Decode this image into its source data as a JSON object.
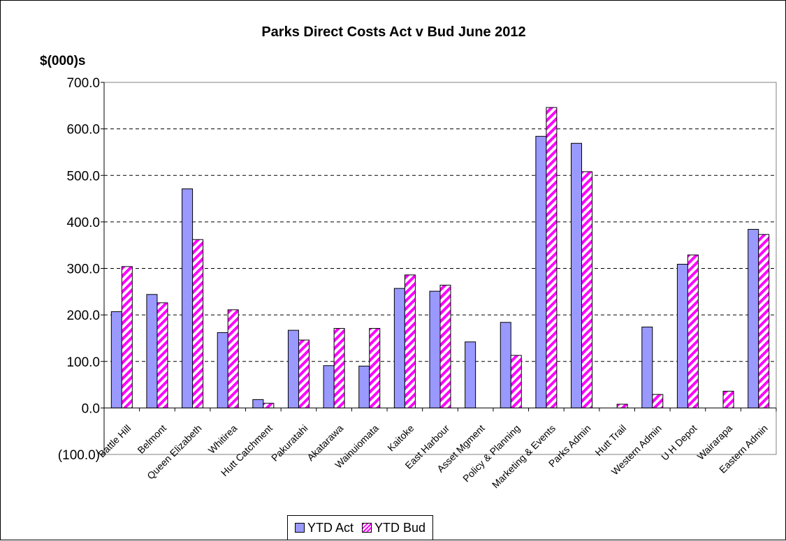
{
  "chart_data": {
    "type": "bar",
    "title": "Parks Direct Costs Act v Bud June 2012",
    "xlabel": "",
    "ylabel": "$(000)s",
    "ylim": [
      -100,
      700
    ],
    "yticks": [
      -100,
      0,
      100,
      200,
      300,
      400,
      500,
      600,
      700
    ],
    "ytick_labels": [
      "(100.0)",
      "0.0",
      "100.0",
      "200.0",
      "300.0",
      "400.0",
      "500.0",
      "600.0",
      "700.0"
    ],
    "grid": true,
    "legend_position": "bottom",
    "categories": [
      "Battle Hill",
      "Belmont",
      "Queen Elizabeth",
      "Whitirea",
      "Hutt Catchment",
      "Pakuratahi",
      "Akatarawa",
      "Wainuiomata",
      "Kaitoke",
      "East Harbour",
      "Asset Mgment",
      "Policy & Planning",
      "Marketing & Events",
      "Parks Admin",
      "Hutt Trail",
      "Western Admin",
      "U H Depot",
      "Wairarapa",
      "Eastern Admin"
    ],
    "series": [
      {
        "name": "YTD Act",
        "color": "#9999ff",
        "values": [
          207,
          244,
          471,
          162,
          18,
          167,
          91,
          90,
          257,
          251,
          142,
          184,
          584,
          569,
          0,
          174,
          309,
          0,
          384
        ]
      },
      {
        "name": "YTD Bud",
        "color": "#ff00ff",
        "values": [
          304,
          226,
          362,
          211,
          10,
          146,
          171,
          171,
          286,
          264,
          0,
          113,
          646,
          508,
          8,
          29,
          329,
          36,
          373
        ]
      }
    ]
  }
}
